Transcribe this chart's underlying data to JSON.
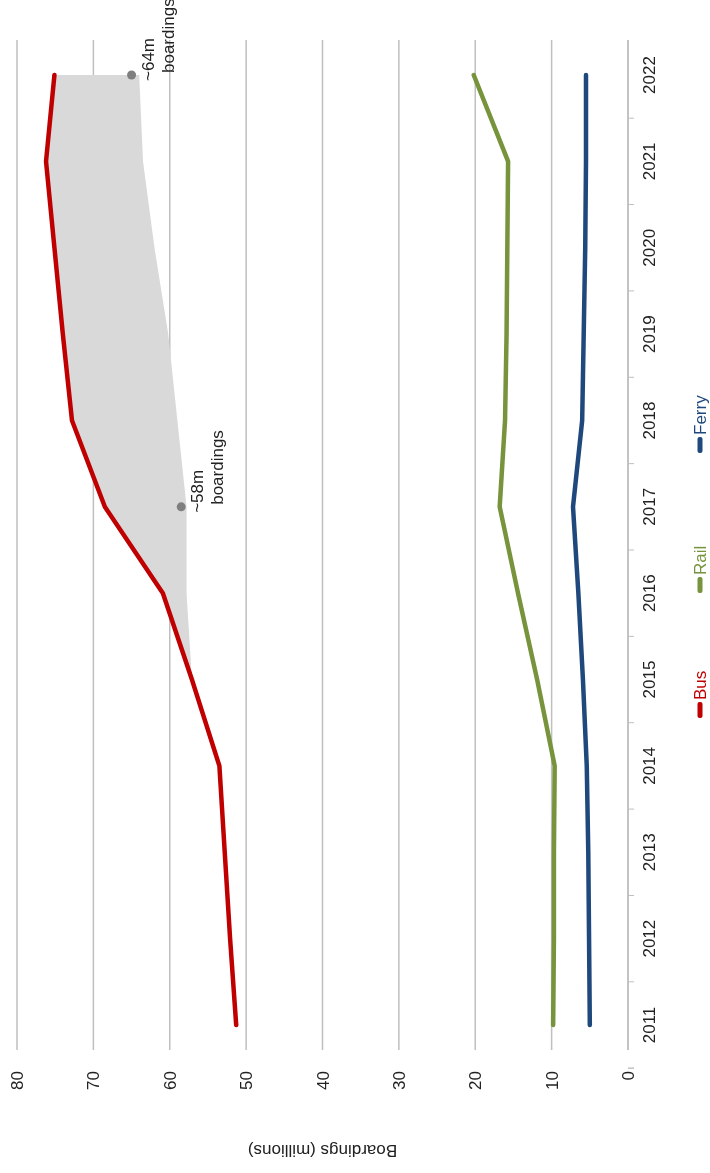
{
  "chart_data": {
    "type": "line",
    "orientation": "horizontal",
    "xlabel": "Boardings (millions)",
    "categories": [
      "2022",
      "2021",
      "2020",
      "2019",
      "2018",
      "2017",
      "2016",
      "2015",
      "2014",
      "2013",
      "2012",
      "2011"
    ],
    "xlim": [
      80,
      0
    ],
    "xticks": [
      80,
      70,
      60,
      50,
      40,
      30,
      20,
      10,
      0
    ],
    "grid": "x",
    "legend": "bottom",
    "marker": "none",
    "line_style": "solid",
    "series": [
      {
        "name": "Bus",
        "color": "#c00000",
        "values": [
          75.1,
          76.2,
          75.1,
          74,
          72.8,
          68.5,
          60.9,
          57.1,
          53.5,
          52.8,
          52.1,
          51.3
        ],
        "lower": [
          64,
          63.5,
          62,
          60.2,
          59,
          57.8,
          57.8,
          57.1,
          null,
          null,
          null,
          null
        ],
        "upper": [
          75.1,
          76.2,
          75.1,
          74,
          72.8,
          68.5,
          60.9,
          57.1,
          null,
          null,
          null,
          null
        ]
      },
      {
        "name": "Rail",
        "color": "#77933c",
        "values": [
          20.2,
          15.7,
          15.8,
          15.9,
          16.1,
          16.8,
          14.4,
          11.9,
          9.6,
          9.7,
          9.7,
          9.8
        ]
      },
      {
        "name": "Ferry",
        "color": "#1f497d",
        "values": [
          5.5,
          5.5,
          5.6,
          5.8,
          6,
          7.2,
          6.5,
          5.9,
          5.4,
          5.2,
          5.1,
          5
        ]
      }
    ],
    "annotations": [
      {
        "text": "~58m boardings",
        "x": 58.5,
        "y": "2017"
      },
      {
        "text": "~64m boardings",
        "x": 65,
        "y": "2022"
      }
    ]
  }
}
